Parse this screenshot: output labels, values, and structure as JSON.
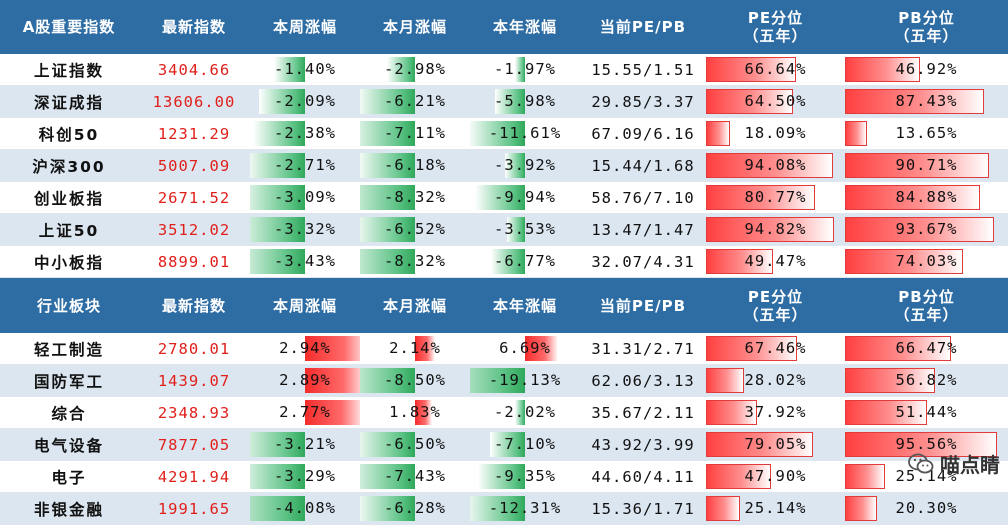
{
  "headers1": [
    "A股重要指数",
    "最新指数",
    "本周涨幅",
    "本月涨幅",
    "本年涨幅",
    "当前PE/PB",
    "PE分位\n（五年）",
    "PB分位\n（五年）"
  ],
  "headers2": [
    "行业板块",
    "最新指数",
    "本周涨幅",
    "本月涨幅",
    "本年涨幅",
    "当前PE/PB",
    "PE分位\n（五年）",
    "PB分位\n（五年）"
  ],
  "watermark": "喵点睛",
  "chart_data": [
    {
      "type": "table",
      "columns": [
        "A股重要指数",
        "最新指数",
        "本周涨幅",
        "本月涨幅",
        "本年涨幅",
        "当前PE/PB",
        "PE分位（五年）",
        "PB分位（五年）"
      ],
      "rows": [
        {
          "name": "上证指数",
          "index": "3404.66",
          "week": -1.4,
          "month": -2.98,
          "year": -1.97,
          "pepb": "15.55/1.51",
          "pe_pct": 66.64,
          "pb_pct": 46.92
        },
        {
          "name": "深证成指",
          "index": "13606.00",
          "week": -2.09,
          "month": -6.21,
          "year": -5.98,
          "pepb": "29.85/3.37",
          "pe_pct": 64.5,
          "pb_pct": 87.43
        },
        {
          "name": "科创50",
          "index": "1231.29",
          "week": -2.38,
          "month": -7.11,
          "year": -11.61,
          "pepb": "67.09/6.16",
          "pe_pct": 18.09,
          "pb_pct": 13.65
        },
        {
          "name": "沪深300",
          "index": "5007.09",
          "week": -2.71,
          "month": -6.18,
          "year": -3.92,
          "pepb": "15.44/1.68",
          "pe_pct": 94.08,
          "pb_pct": 90.71
        },
        {
          "name": "创业板指",
          "index": "2671.52",
          "week": -3.09,
          "month": -8.32,
          "year": -9.94,
          "pepb": "58.76/7.10",
          "pe_pct": 80.77,
          "pb_pct": 84.88
        },
        {
          "name": "上证50",
          "index": "3512.02",
          "week": -3.32,
          "month": -6.52,
          "year": -3.53,
          "pepb": "13.47/1.47",
          "pe_pct": 94.82,
          "pb_pct": 93.67
        },
        {
          "name": "中小板指",
          "index": "8899.01",
          "week": -3.43,
          "month": -8.32,
          "year": -6.77,
          "pepb": "32.07/4.31",
          "pe_pct": 49.47,
          "pb_pct": 74.03
        }
      ]
    },
    {
      "type": "table",
      "columns": [
        "行业板块",
        "最新指数",
        "本周涨幅",
        "本月涨幅",
        "本年涨幅",
        "当前PE/PB",
        "PE分位（五年）",
        "PB分位（五年）"
      ],
      "rows": [
        {
          "name": "轻工制造",
          "index": "2780.01",
          "week": 2.94,
          "month": 2.14,
          "year": 6.69,
          "pepb": "31.31/2.71",
          "pe_pct": 67.46,
          "pb_pct": 66.47
        },
        {
          "name": "国防军工",
          "index": "1439.07",
          "week": 2.89,
          "month": -8.5,
          "year": -19.13,
          "pepb": "62.06/3.13",
          "pe_pct": 28.02,
          "pb_pct": 56.82
        },
        {
          "name": "综合",
          "index": "2348.93",
          "week": 2.77,
          "month": 1.83,
          "year": -2.02,
          "pepb": "35.67/2.11",
          "pe_pct": 37.92,
          "pb_pct": 51.44
        },
        {
          "name": "电气设备",
          "index": "7877.05",
          "week": -3.21,
          "month": -6.5,
          "year": -7.1,
          "pepb": "43.92/3.99",
          "pe_pct": 79.05,
          "pb_pct": 95.56
        },
        {
          "name": "电子",
          "index": "4291.94",
          "week": -3.29,
          "month": -7.43,
          "year": -9.35,
          "pepb": "44.60/4.11",
          "pe_pct": 47.9,
          "pb_pct": 25.14
        },
        {
          "name": "非银金融",
          "index": "1991.65",
          "week": -4.08,
          "month": -6.28,
          "year": -12.31,
          "pepb": "15.36/1.71",
          "pe_pct": 25.14,
          "pb_pct": 20.3
        }
      ]
    }
  ]
}
